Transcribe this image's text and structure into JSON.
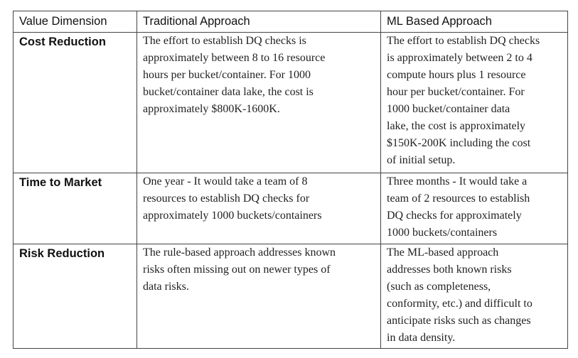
{
  "table": {
    "headers": [
      "Value Dimension",
      "Traditional Approach",
      "ML Based Approach"
    ],
    "rows": [
      {
        "dimension": "Cost Reduction",
        "traditional": [
          "The effort to establish DQ checks is",
          "approximately between 8 to 16 resource",
          "hours per bucket/container. For 1000",
          "bucket/container data lake, the cost is",
          "approximately $800K-1600K."
        ],
        "ml": [
          "The effort to establish DQ checks",
          "is approximately between 2 to 4",
          "compute hours plus 1 resource",
          "hour per bucket/container. For",
          "1000 bucket/container data",
          "lake, the cost is approximately",
          "$150K-200K including the cost",
          "of initial setup."
        ]
      },
      {
        "dimension": "Time to Market",
        "traditional": [
          "One year - It would take a team of 8",
          "resources to establish DQ checks for",
          "approximately 1000 buckets/containers"
        ],
        "ml": [
          "Three months - It would take a",
          "team of 2 resources to establish",
          "DQ checks for approximately",
          "1000 buckets/containers"
        ]
      },
      {
        "dimension": "Risk Reduction",
        "traditional": [
          "The rule-based approach addresses known",
          "risks often missing out on newer types of",
          "data risks."
        ],
        "ml": [
          "The ML-based approach",
          "addresses both known risks",
          "(such as completeness,",
          "conformity, etc.) and difficult to",
          "anticipate risks such as changes",
          "in data density."
        ]
      }
    ]
  }
}
